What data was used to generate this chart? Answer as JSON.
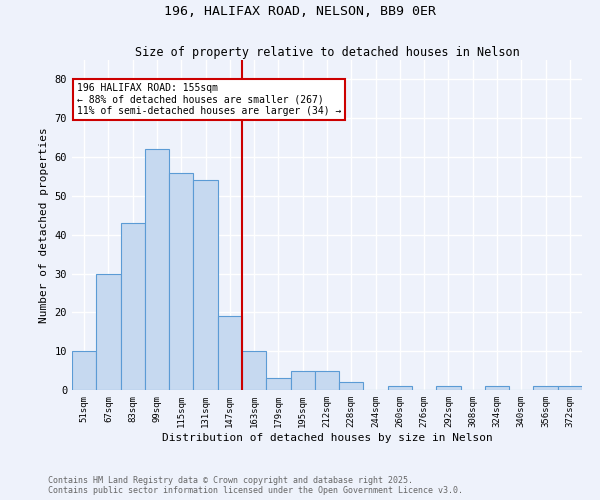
{
  "title": "196, HALIFAX ROAD, NELSON, BB9 0ER",
  "subtitle": "Size of property relative to detached houses in Nelson",
  "xlabel": "Distribution of detached houses by size in Nelson",
  "ylabel": "Number of detached properties",
  "bin_labels": [
    "51sqm",
    "67sqm",
    "83sqm",
    "99sqm",
    "115sqm",
    "131sqm",
    "147sqm",
    "163sqm",
    "179sqm",
    "195sqm",
    "212sqm",
    "228sqm",
    "244sqm",
    "260sqm",
    "276sqm",
    "292sqm",
    "308sqm",
    "324sqm",
    "340sqm",
    "356sqm",
    "372sqm"
  ],
  "bar_values": [
    10,
    30,
    43,
    62,
    56,
    54,
    19,
    10,
    3,
    5,
    5,
    2,
    0,
    1,
    0,
    1,
    0,
    1,
    0,
    1,
    1
  ],
  "bar_color": "#c6d9f0",
  "bar_edge_color": "#5b9bd5",
  "vline_x_index": 6.5,
  "vline_color": "#cc0000",
  "ylim": [
    0,
    85
  ],
  "yticks": [
    0,
    10,
    20,
    30,
    40,
    50,
    60,
    70,
    80
  ],
  "annotation_title": "196 HALIFAX ROAD: 155sqm",
  "annotation_line1": "← 88% of detached houses are smaller (267)",
  "annotation_line2": "11% of semi-detached houses are larger (34) →",
  "annotation_box_color": "#ffffff",
  "annotation_box_edge": "#cc0000",
  "footer_line1": "Contains HM Land Registry data © Crown copyright and database right 2025.",
  "footer_line2": "Contains public sector information licensed under the Open Government Licence v3.0.",
  "background_color": "#eef2fb",
  "grid_color": "#ffffff"
}
